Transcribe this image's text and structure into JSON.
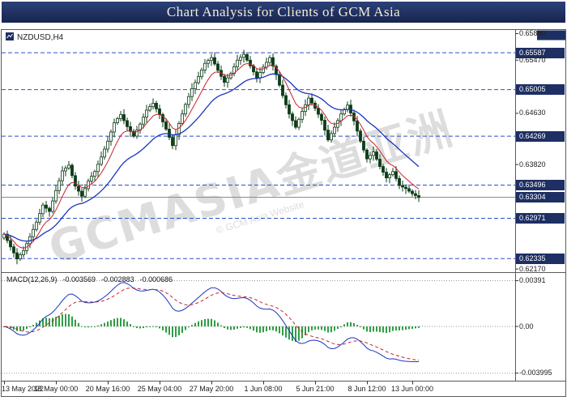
{
  "title": "Chart Analysis for Clients of GCM Asia",
  "symbol_label": "NZDUSD,H4",
  "watermark": {
    "main": "GCMASIA金道亚洲",
    "sub": "© GCM Asia Website"
  },
  "macd_display": {
    "label": "MACD(12,26,9)",
    "values": [
      "-0.003569",
      "-0.002883",
      "-0.000686"
    ]
  },
  "price_axis": {
    "labels": [
      {
        "text": "0.65890",
        "value": 0.6589,
        "style": "plain"
      },
      {
        "text": "0.65587",
        "value": 0.65587,
        "style": "level"
      },
      {
        "text": "0.65470",
        "value": 0.6547,
        "style": "plain"
      },
      {
        "text": "0.65005",
        "value": 0.65005,
        "style": "level"
      },
      {
        "text": "0.64630",
        "value": 0.6463,
        "style": "plain"
      },
      {
        "text": "0.64269",
        "value": 0.64269,
        "style": "level"
      },
      {
        "text": "0.63820",
        "value": 0.6382,
        "style": "plain"
      },
      {
        "text": "0.63496",
        "value": 0.63496,
        "style": "level"
      },
      {
        "text": "0.63304",
        "value": 0.63304,
        "style": "current"
      },
      {
        "text": "0.62971",
        "value": 0.62971,
        "style": "level"
      },
      {
        "text": "0.62335",
        "value": 0.62335,
        "style": "level"
      },
      {
        "text": "0.62170",
        "value": 0.6217,
        "style": "plain"
      }
    ]
  },
  "macd_axis": {
    "labels": [
      {
        "text": "0.00391",
        "value": 0.00391
      },
      {
        "text": "0.00",
        "value": 0
      },
      {
        "text": "-0.003995",
        "value": -0.003995
      }
    ]
  },
  "time_axis": {
    "labels": [
      {
        "text": "13 May 2022",
        "i": 0
      },
      {
        "text": "18 May 00:00",
        "i": 16
      },
      {
        "text": "20 May 16:00",
        "i": 32
      },
      {
        "text": "25 May 04:00",
        "i": 48
      },
      {
        "text": "27 May 20:00",
        "i": 64
      },
      {
        "text": "1 Jun 08:00",
        "i": 80
      },
      {
        "text": "5 Jun 21:00",
        "i": 96
      },
      {
        "text": "8 Jun 12:00",
        "i": 112
      },
      {
        "text": "13 Jun 00:00",
        "i": 126
      }
    ]
  },
  "colors": {
    "accent_navy": "#1e2f63",
    "level_blue": "#2b50c8",
    "candle_green": "#0d3b17",
    "candle_bull_fill": "#ffffff",
    "ma_red": "#c8232c",
    "ma_blue": "#1a35c0",
    "macd_hist_green": "#2f9e44",
    "current_line": "#8a8a8a",
    "frame": "#5a5a5a"
  },
  "chart_data": {
    "type": "candlestick",
    "symbol": "NZDUSD",
    "timeframe": "H4",
    "title": "Chart Analysis for Clients of GCM Asia",
    "y_range": [
      0.6212,
      0.6596
    ],
    "x_ticks": [
      "13 May 2022",
      "18 May 00:00",
      "20 May 16:00",
      "25 May 04:00",
      "27 May 20:00",
      "1 Jun 08:00",
      "5 Jun 21:00",
      "8 Jun 12:00",
      "13 Jun 00:00"
    ],
    "price_levels": [
      0.65587,
      0.65005,
      0.64269,
      0.63496,
      0.62971,
      0.62335
    ],
    "current_price": 0.63304,
    "sample_step_candles": 2,
    "closes_sampled": [
      0.6272,
      0.6252,
      0.6233,
      0.6246,
      0.6268,
      0.6291,
      0.6318,
      0.6308,
      0.6341,
      0.6372,
      0.6381,
      0.6348,
      0.6332,
      0.6356,
      0.6371,
      0.6394,
      0.6419,
      0.6448,
      0.6461,
      0.6442,
      0.6427,
      0.6446,
      0.6468,
      0.6479,
      0.6461,
      0.6438,
      0.6412,
      0.6447,
      0.6477,
      0.6502,
      0.6521,
      0.6542,
      0.6551,
      0.6531,
      0.6512,
      0.6526,
      0.6547,
      0.6556,
      0.6538,
      0.6519,
      0.6536,
      0.6551,
      0.6524,
      0.6491,
      0.6462,
      0.6441,
      0.6466,
      0.6487,
      0.6471,
      0.6452,
      0.6421,
      0.6441,
      0.6462,
      0.6476,
      0.6451,
      0.6419,
      0.6391,
      0.6402,
      0.6379,
      0.6361,
      0.6371,
      0.6349,
      0.6344,
      0.6336,
      0.633
    ],
    "indicators": {
      "ma_fast_period": 8,
      "ma_slow_period": 24,
      "macd_params": [
        12,
        26,
        9
      ],
      "macd_last_values": [
        -0.003569,
        -0.002883,
        -0.000686
      ],
      "macd_y_ticks": [
        0.00391,
        0.0,
        -0.003995
      ]
    }
  }
}
